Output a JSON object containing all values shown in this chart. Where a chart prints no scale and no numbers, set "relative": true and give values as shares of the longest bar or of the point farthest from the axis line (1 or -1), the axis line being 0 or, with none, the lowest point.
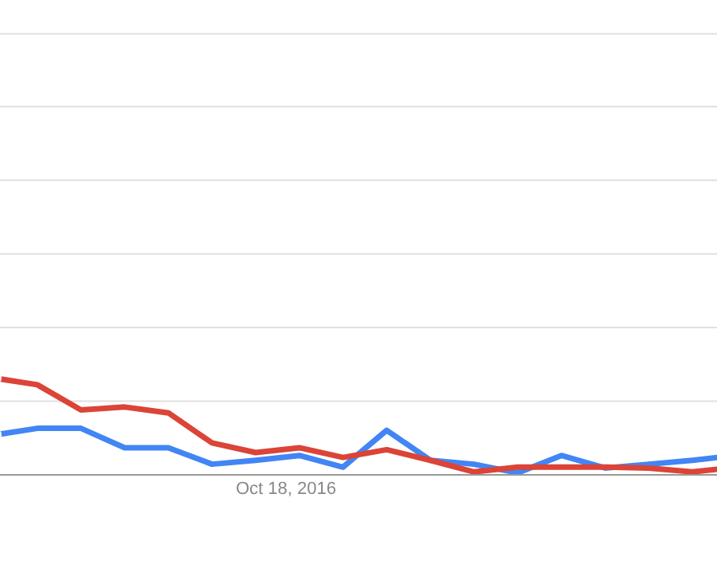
{
  "chart_data": {
    "type": "line",
    "relative": true,
    "ref_lines": [
      {
        "axis": "y",
        "value": 0.76,
        "color": "#e0e0e0"
      },
      {
        "axis": "y",
        "value": 1.52,
        "color": "#e0e0e0"
      },
      {
        "axis": "y",
        "value": 2.28,
        "color": "#e0e0e0"
      },
      {
        "axis": "y",
        "value": 3.04,
        "color": "#e0e0e0"
      },
      {
        "axis": "y",
        "value": 3.8,
        "color": "#e0e0e0"
      },
      {
        "axis": "y",
        "value": 4.55,
        "color": "#e0e0e0"
      }
    ],
    "marker": "none",
    "line_style": "solid",
    "categories": [
      null,
      null,
      null,
      null,
      null,
      null,
      null,
      null,
      null,
      null,
      null,
      null,
      null,
      null,
      null,
      null,
      null,
      null
    ],
    "annotations": [
      "Oct 18, 2016"
    ],
    "series": [
      {
        "color": "#4285f4",
        "values": [
          0.41,
          0.48,
          0.48,
          0.28,
          0.28,
          0.11,
          0.15,
          0.2,
          0.08,
          0.46,
          0.15,
          0.11,
          0.02,
          0.2,
          0.07,
          0.11,
          0.15,
          0.2
        ]
      },
      {
        "color": "#db4437",
        "values": [
          1,
          0.93,
          0.67,
          0.7,
          0.64,
          0.33,
          0.23,
          0.28,
          0.18,
          0.26,
          0.15,
          0.03,
          0.08,
          0.08,
          0.08,
          0.07,
          0.03,
          0.08
        ]
      }
    ]
  }
}
